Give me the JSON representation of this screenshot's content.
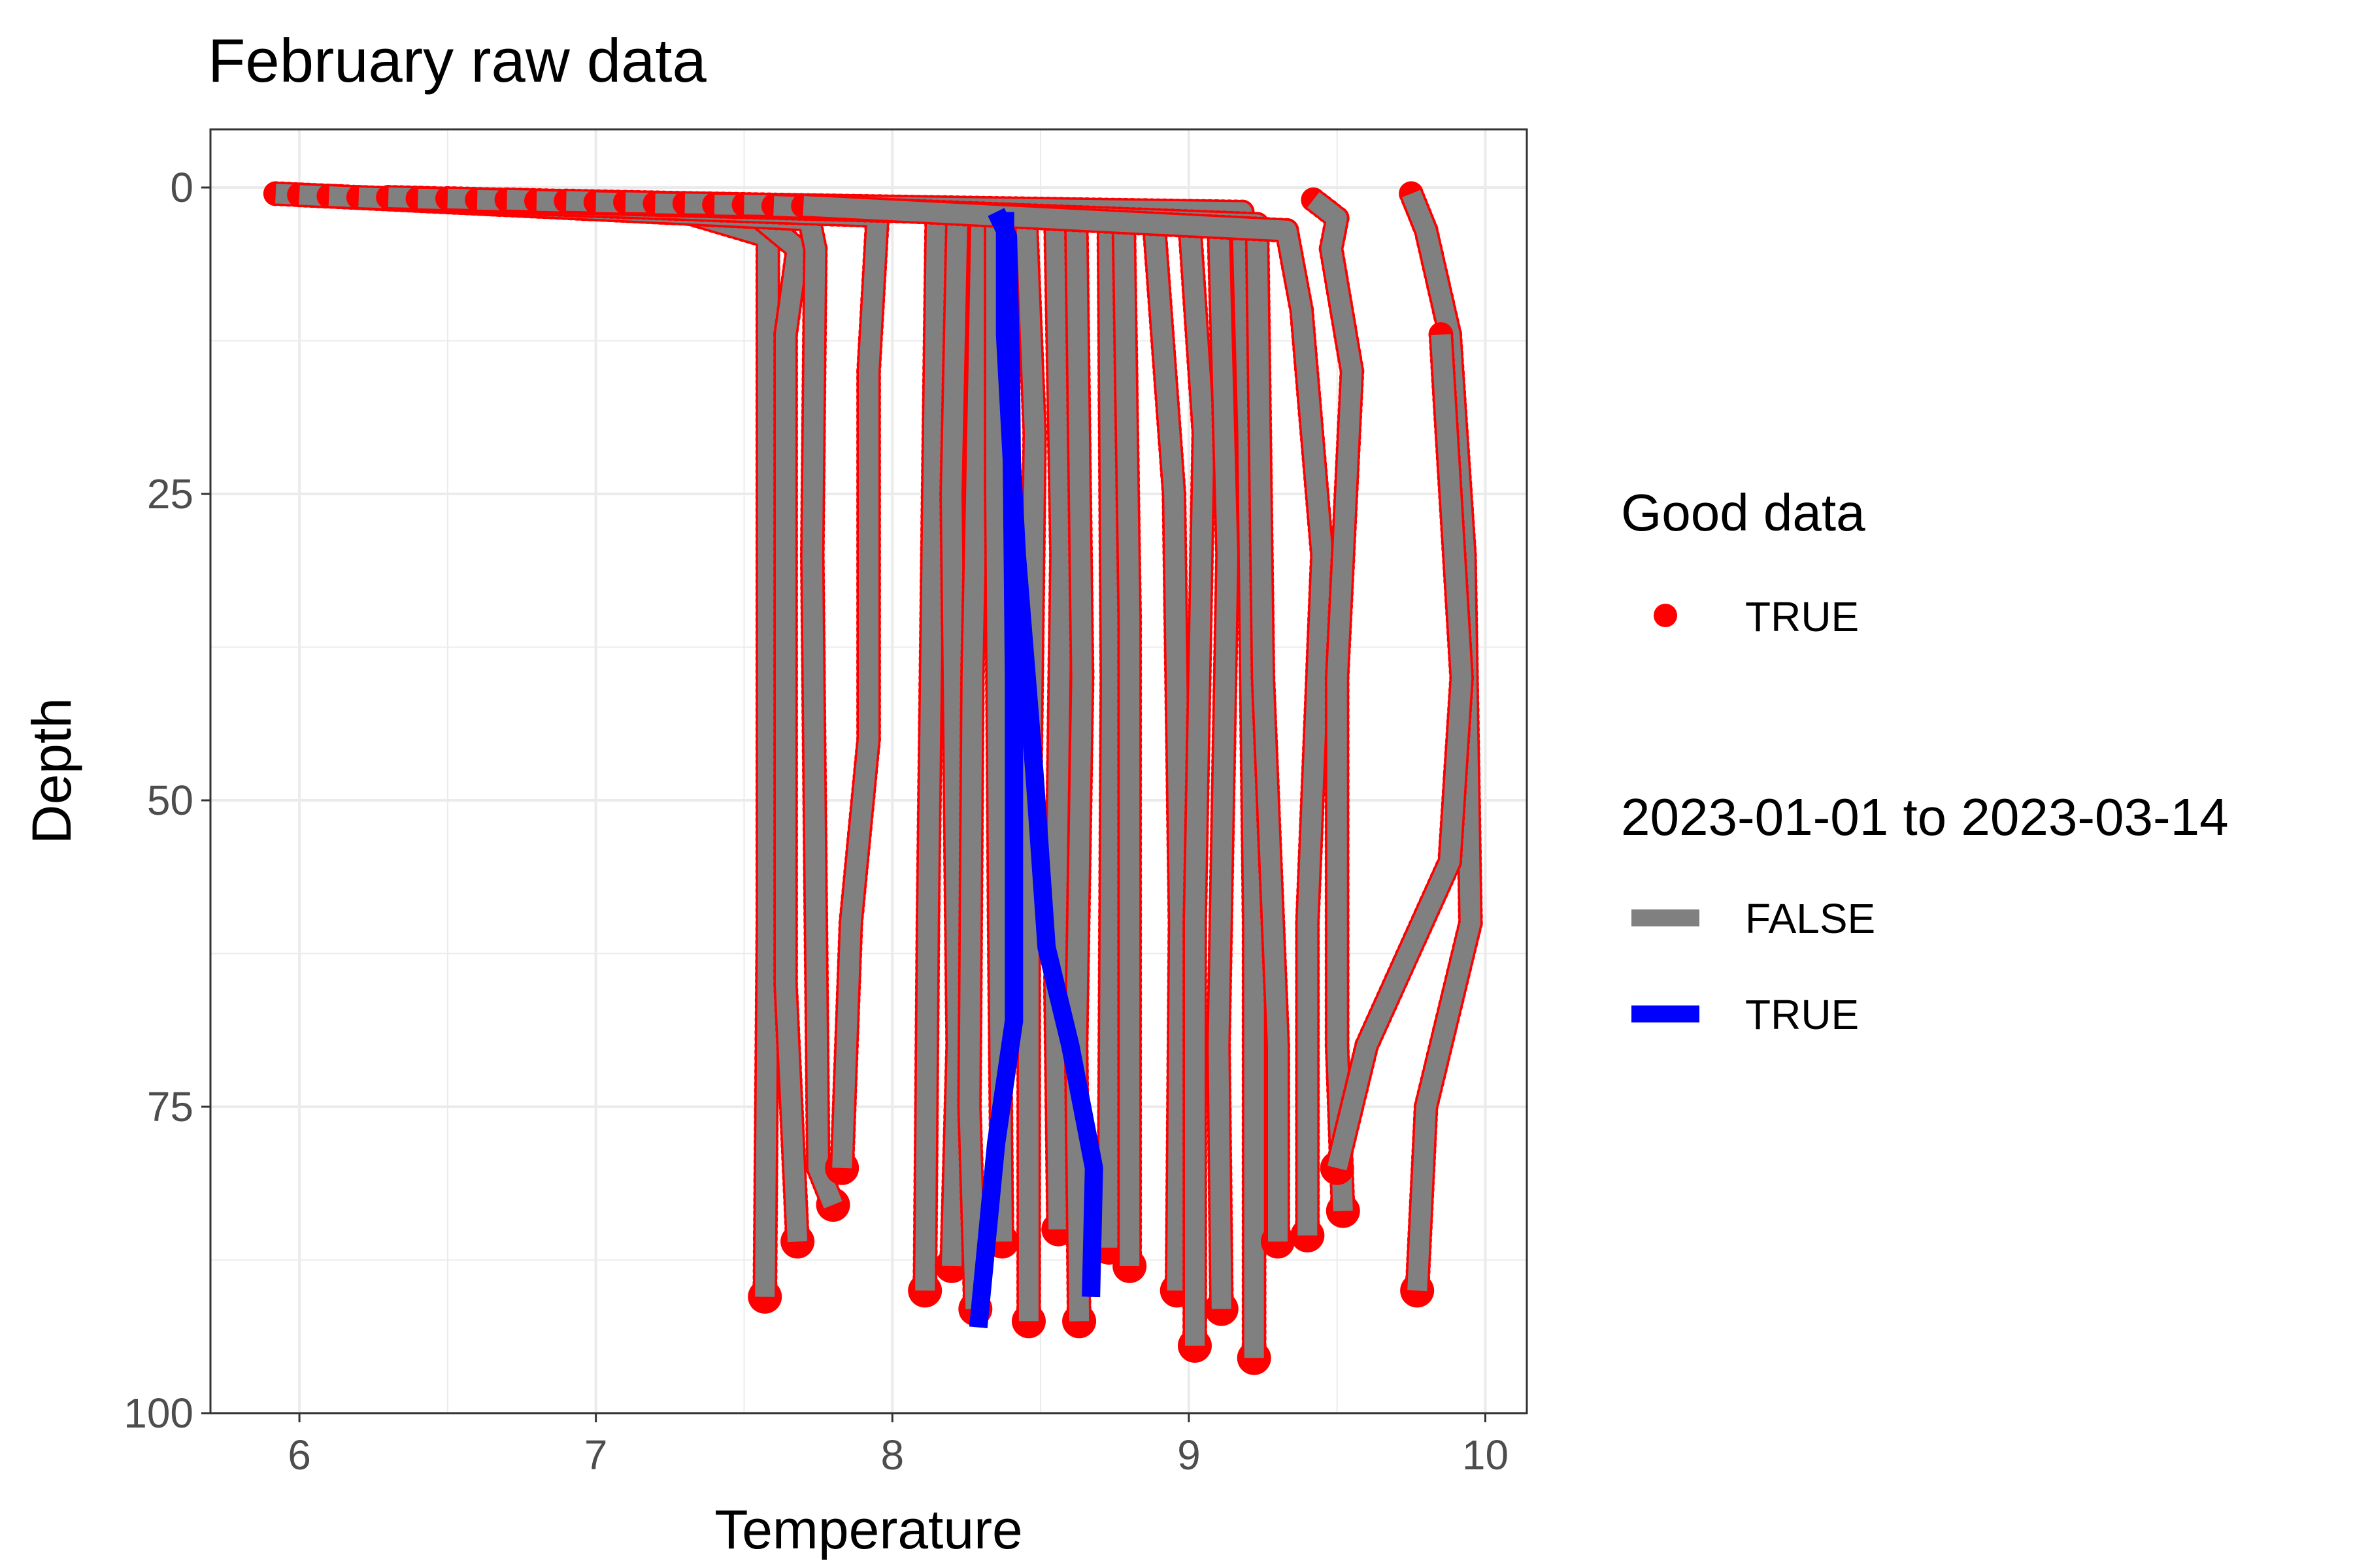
{
  "chart_data": {
    "type": "line",
    "title": "February raw data",
    "xlabel": "Temperature",
    "ylabel": "Depth",
    "xlim": [
      5.7,
      10.14
    ],
    "ylim": [
      0,
      100
    ],
    "y_reversed": true,
    "x_ticks": [
      6,
      7,
      8,
      9,
      10
    ],
    "y_ticks": [
      0,
      25,
      50,
      75,
      100
    ],
    "grid": true,
    "legend_position": "right",
    "legends": [
      {
        "title": "Good data",
        "type": "point",
        "entries": [
          {
            "label": "TRUE",
            "color": "#ff0000"
          }
        ]
      },
      {
        "title": "2023-01-01 to 2023-03-14",
        "type": "line",
        "entries": [
          {
            "label": "FALSE",
            "color": "#808080"
          },
          {
            "label": "TRUE",
            "color": "#0000ff"
          }
        ]
      }
    ],
    "series": [
      {
        "group": "FALSE",
        "values": [
          [
            5.92,
            0.5
          ],
          [
            7.3,
            2.0
          ],
          [
            7.58,
            4.0
          ],
          [
            7.58,
            20.0
          ],
          [
            7.58,
            60.0
          ],
          [
            7.57,
            90.5
          ]
        ]
      },
      {
        "group": "FALSE",
        "values": [
          [
            6.0,
            0.6
          ],
          [
            7.55,
            2.4
          ],
          [
            7.68,
            5.0
          ],
          [
            7.64,
            12.0
          ],
          [
            7.64,
            65.0
          ],
          [
            7.68,
            86.0
          ]
        ]
      },
      {
        "group": "FALSE",
        "values": [
          [
            6.1,
            0.7
          ],
          [
            7.72,
            2.6
          ],
          [
            7.74,
            5.0
          ],
          [
            7.73,
            30.0
          ],
          [
            7.75,
            80.0
          ],
          [
            7.8,
            83.0
          ]
        ]
      },
      {
        "group": "FALSE",
        "values": [
          [
            6.2,
            0.8
          ],
          [
            7.95,
            2.3
          ],
          [
            7.92,
            15.0
          ],
          [
            7.92,
            45.0
          ],
          [
            7.86,
            60.0
          ],
          [
            7.83,
            80.0
          ]
        ]
      },
      {
        "group": "FALSE",
        "values": [
          [
            6.3,
            0.8
          ],
          [
            8.15,
            2.0
          ],
          [
            8.14,
            20.0
          ],
          [
            8.12,
            60.0
          ],
          [
            8.11,
            90.0
          ]
        ]
      },
      {
        "group": "FALSE",
        "values": [
          [
            6.4,
            0.9
          ],
          [
            8.22,
            2.0
          ],
          [
            8.2,
            25.0
          ],
          [
            8.22,
            70.0
          ],
          [
            8.2,
            88.0
          ]
        ]
      },
      {
        "group": "FALSE",
        "values": [
          [
            6.5,
            0.9
          ],
          [
            8.3,
            2.0
          ],
          [
            8.27,
            40.0
          ],
          [
            8.26,
            75.0
          ],
          [
            8.28,
            91.5
          ]
        ]
      },
      {
        "group": "FALSE",
        "values": [
          [
            6.6,
            1.0
          ],
          [
            8.45,
            2.0
          ],
          [
            8.48,
            20.0
          ],
          [
            8.46,
            60.0
          ],
          [
            8.46,
            92.5
          ]
        ]
      },
      {
        "group": "FALSE",
        "values": [
          [
            6.7,
            1.0
          ],
          [
            8.35,
            2.0
          ],
          [
            8.35,
            25.0
          ],
          [
            8.36,
            60.0
          ],
          [
            8.37,
            86.0
          ]
        ]
      },
      {
        "group": "FALSE",
        "values": [
          [
            6.8,
            1.1
          ],
          [
            8.55,
            2.0
          ],
          [
            8.57,
            30.0
          ],
          [
            8.55,
            65.0
          ],
          [
            8.56,
            85.0
          ]
        ]
      },
      {
        "group": "FALSE",
        "values": [
          [
            6.9,
            1.1
          ],
          [
            8.62,
            2.0
          ],
          [
            8.64,
            40.0
          ],
          [
            8.62,
            70.0
          ],
          [
            8.63,
            92.5
          ]
        ]
      },
      {
        "group": "FALSE",
        "values": [
          [
            7.0,
            1.2
          ],
          [
            8.73,
            2.0
          ],
          [
            8.74,
            40.0
          ],
          [
            8.73,
            86.5
          ]
        ]
      },
      {
        "group": "FALSE",
        "values": [
          [
            7.1,
            1.2
          ],
          [
            8.78,
            2.0
          ],
          [
            8.8,
            35.0
          ],
          [
            8.8,
            88.0
          ]
        ]
      },
      {
        "group": "FALSE",
        "values": [
          [
            7.2,
            1.3
          ],
          [
            8.88,
            2.0
          ],
          [
            8.95,
            25.0
          ],
          [
            8.97,
            60.0
          ],
          [
            8.96,
            90.0
          ]
        ]
      },
      {
        "group": "FALSE",
        "values": [
          [
            7.3,
            1.3
          ],
          [
            9.0,
            2.0
          ],
          [
            9.05,
            20.0
          ],
          [
            9.02,
            60.0
          ],
          [
            9.02,
            94.5
          ]
        ]
      },
      {
        "group": "FALSE",
        "values": [
          [
            7.4,
            1.4
          ],
          [
            9.1,
            2.0
          ],
          [
            9.13,
            30.0
          ],
          [
            9.1,
            70.0
          ],
          [
            9.11,
            91.5
          ]
        ]
      },
      {
        "group": "FALSE",
        "values": [
          [
            7.5,
            1.4
          ],
          [
            9.18,
            2.0
          ],
          [
            9.2,
            20.0
          ],
          [
            9.22,
            60.0
          ],
          [
            9.22,
            95.5
          ]
        ]
      },
      {
        "group": "FALSE",
        "values": [
          [
            7.6,
            1.5
          ],
          [
            9.23,
            3.0
          ],
          [
            9.25,
            40.0
          ],
          [
            9.3,
            70.0
          ],
          [
            9.3,
            86.0
          ]
        ]
      },
      {
        "group": "FALSE",
        "values": [
          [
            7.7,
            1.5
          ],
          [
            9.33,
            3.5
          ],
          [
            9.38,
            10.0
          ],
          [
            9.45,
            30.0
          ],
          [
            9.4,
            60.0
          ],
          [
            9.4,
            85.5
          ]
        ]
      },
      {
        "group": "FALSE",
        "values": [
          [
            9.42,
            1.0
          ],
          [
            9.5,
            2.5
          ],
          [
            9.48,
            5.0
          ],
          [
            9.55,
            15.0
          ],
          [
            9.5,
            40.0
          ],
          [
            9.5,
            70.0
          ],
          [
            9.52,
            83.5
          ]
        ]
      },
      {
        "group": "FALSE",
        "values": [
          [
            9.75,
            0.5
          ],
          [
            9.8,
            3.5
          ],
          [
            9.88,
            12.0
          ],
          [
            9.93,
            30.0
          ],
          [
            9.95,
            60.0
          ],
          [
            9.8,
            75.0
          ],
          [
            9.77,
            90.0
          ]
        ]
      },
      {
        "group": "FALSE",
        "values": [
          [
            9.85,
            12.0
          ],
          [
            9.92,
            40.0
          ],
          [
            9.88,
            55.0
          ],
          [
            9.6,
            70.0
          ],
          [
            9.5,
            80.0
          ]
        ]
      },
      {
        "group": "TRUE",
        "values": [
          [
            8.35,
            2.0
          ],
          [
            8.39,
            4.0
          ],
          [
            8.4,
            15.0
          ],
          [
            8.41,
            40.0
          ],
          [
            8.41,
            68.0
          ],
          [
            8.35,
            78.0
          ],
          [
            8.29,
            93.0
          ]
        ]
      },
      {
        "group": "TRUE",
        "values": [
          [
            8.38,
            2.0
          ],
          [
            8.38,
            12.0
          ],
          [
            8.42,
            30.0
          ],
          [
            8.48,
            48.0
          ],
          [
            8.52,
            62.0
          ],
          [
            8.6,
            70.0
          ],
          [
            8.68,
            80.0
          ],
          [
            8.67,
            90.5
          ]
        ]
      }
    ]
  }
}
